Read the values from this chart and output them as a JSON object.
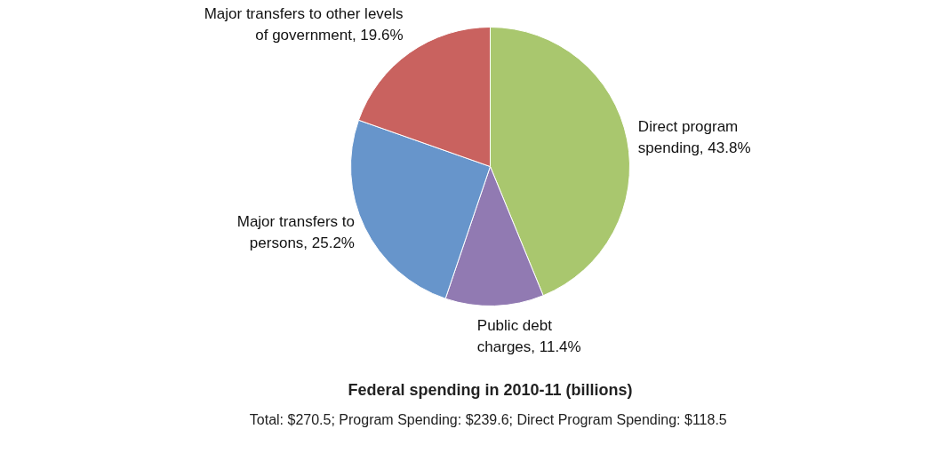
{
  "chart_data": {
    "type": "pie",
    "title": "Federal spending in 2010-11 (billions)",
    "subtitle": "Total: $270.5;  Program Spending: $239.6; Direct Program Spending: $118.5",
    "categories": [
      "Direct program\nspending",
      "Public debt\ncharges",
      "Major transfers to\npersons",
      "Major transfers to other levels\nof government"
    ],
    "values": [
      43.8,
      11.4,
      25.2,
      19.6
    ],
    "value_labels": [
      "43.8%",
      "11.4%",
      "25.2%",
      "19.6%"
    ],
    "colors": [
      "#a9c76e",
      "#917ab2",
      "#6795cb",
      "#c9625f"
    ],
    "legend": false
  }
}
